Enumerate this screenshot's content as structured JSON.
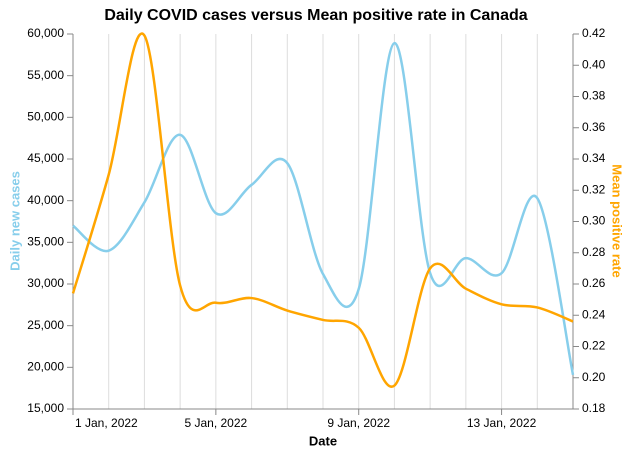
{
  "chart_data": {
    "type": "line",
    "title": "Daily COVID cases versus Mean positive rate in Canada",
    "x_label": "Date",
    "y_label": "Daily new cases",
    "y2_label": "Mean positive rate",
    "x": [
      "2022-01-01",
      "2022-01-02",
      "2022-01-03",
      "2022-01-04",
      "2022-01-05",
      "2022-01-06",
      "2022-01-07",
      "2022-01-08",
      "2022-01-09",
      "2022-01-10",
      "2022-01-11",
      "2022-01-12",
      "2022-01-13",
      "2022-01-14",
      "2022-01-15"
    ],
    "xlim": [
      "2022-01-01",
      "2022-01-15"
    ],
    "xticks": [
      {
        "value": "2022-01-01",
        "label": "1 Jan, 2022"
      },
      {
        "value": "2022-01-05",
        "label": "5 Jan, 2022"
      },
      {
        "value": "2022-01-09",
        "label": "9 Jan, 2022"
      },
      {
        "value": "2022-01-13",
        "label": "13 Jan, 2022"
      }
    ],
    "ylim": [
      15000,
      60000
    ],
    "yticks": [
      {
        "value": 15000,
        "label": "15,000"
      },
      {
        "value": 20000,
        "label": "20,000"
      },
      {
        "value": 25000,
        "label": "25,000"
      },
      {
        "value": 30000,
        "label": "30,000"
      },
      {
        "value": 35000,
        "label": "35,000"
      },
      {
        "value": 40000,
        "label": "40,000"
      },
      {
        "value": 45000,
        "label": "45,000"
      },
      {
        "value": 50000,
        "label": "50,000"
      },
      {
        "value": 55000,
        "label": "55,000"
      },
      {
        "value": 60000,
        "label": "60,000"
      }
    ],
    "y2lim": [
      0.18,
      0.42
    ],
    "y2ticks": [
      0.18,
      {
        "value": 0.2,
        "label": "0.20"
      },
      0.22,
      0.24,
      0.26,
      0.28,
      {
        "value": 0.3,
        "label": "0.30"
      },
      0.32,
      0.34,
      0.36,
      0.38,
      {
        "value": 0.4,
        "label": "0.40"
      },
      0.42
    ],
    "grid": true,
    "series": [
      {
        "name": "Daily new cases",
        "color": "#87ceeb",
        "values": [
          37000,
          34000,
          39800,
          47900,
          38500,
          41900,
          44500,
          31200,
          29400,
          58900,
          31300,
          33100,
          31300,
          40300,
          19100
        ]
      },
      {
        "name": "Mean positive rate",
        "color": "#ffa500",
        "axis": "y2",
        "values": [
          0.254,
          0.33,
          0.419,
          0.259,
          0.248,
          0.251,
          0.243,
          0.237,
          0.232,
          0.195,
          0.27,
          0.257,
          0.247,
          0.245,
          0.236
        ]
      }
    ]
  }
}
